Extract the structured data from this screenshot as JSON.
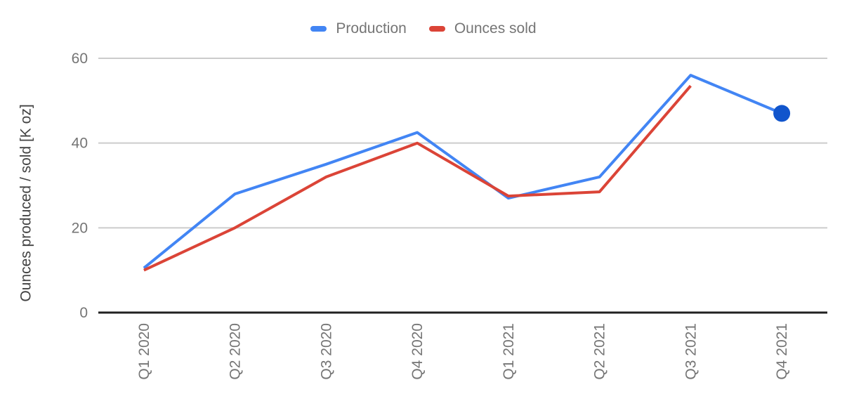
{
  "chart_data": {
    "type": "line",
    "categories": [
      "Q1 2020",
      "Q2 2020",
      "Q3 2020",
      "Q4 2020",
      "Q1 2021",
      "Q2 2021",
      "Q3 2021",
      "Q4 2021"
    ],
    "series": [
      {
        "name": "Production",
        "color": "#4285f4",
        "values": [
          10.5,
          28,
          35,
          42.5,
          27,
          32,
          56,
          47
        ]
      },
      {
        "name": "Ounces sold",
        "color": "#db4437",
        "values": [
          10,
          20,
          32,
          40,
          27.5,
          28.5,
          53.5,
          null
        ]
      }
    ],
    "title": "",
    "xlabel": "",
    "ylabel": "Ounces produced / sold [K oz]",
    "yticks": [
      0,
      20,
      40,
      60
    ],
    "ylim": [
      0,
      60
    ],
    "grid": true,
    "legend_position": "top",
    "point_marker": {
      "series_index": 0,
      "category_index": 7,
      "color": "#1155cc",
      "radius": 12
    }
  },
  "colors": {
    "gridline": "#cccccc",
    "axis_line": "#212121",
    "tick_label": "#757575",
    "axis_title": "#424242",
    "legend_text": "#757575",
    "background": "#ffffff"
  }
}
